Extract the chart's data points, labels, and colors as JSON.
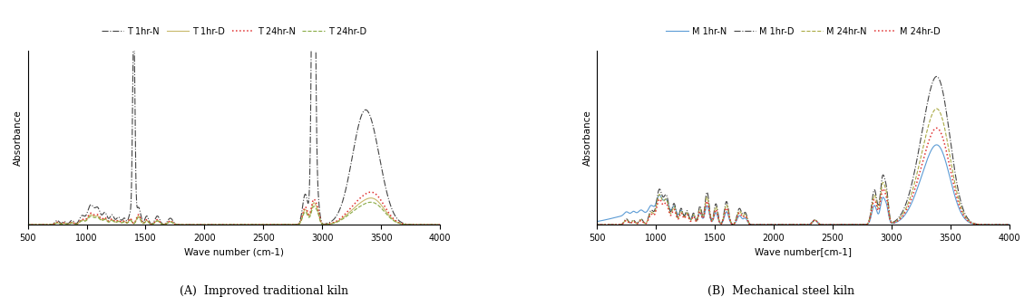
{
  "panel_A_title": "(A)  Improved traditional kiln",
  "panel_B_title": "(B)  Mechanical steel kiln",
  "xlabel_A": "Wave number (cm-1)",
  "xlabel_B": "Wave number[cm-1]",
  "ylabel": "Absorbance",
  "xlim": [
    500,
    4000
  ],
  "xticks": [
    500,
    1000,
    1500,
    2000,
    2500,
    3000,
    3500,
    4000
  ],
  "legend_A": [
    "T 1hr-N",
    "T 1hr-D",
    "T 24hr-N",
    "T 24hr-D"
  ],
  "legend_B": [
    "M 1hr-N",
    "M 1hr-D",
    "M 24hr-N",
    "M 24hr-D"
  ],
  "color_T1N": "#444444",
  "color_T1D": "#c8b86a",
  "color_T24N": "#e03030",
  "color_T24D": "#88aa44",
  "color_M1N": "#5b9bd5",
  "color_M1D": "#444444",
  "color_M24N": "#aaaa44",
  "color_M24D": "#e03030",
  "background_color": "#ffffff"
}
